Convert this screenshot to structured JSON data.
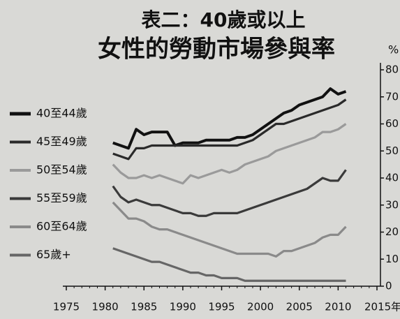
{
  "chart_data": {
    "type": "line",
    "title": "表二：40歲或以上",
    "subtitle": "女性的勞動市場參與率",
    "y_axis_label": "%",
    "x": [
      1981,
      1982,
      1983,
      1984,
      1985,
      1986,
      1987,
      1988,
      1989,
      1990,
      1991,
      1992,
      1993,
      1994,
      1995,
      1996,
      1997,
      1998,
      1999,
      2000,
      2001,
      2002,
      2003,
      2004,
      2005,
      2006,
      2007,
      2008,
      2009,
      2010,
      2011
    ],
    "series": [
      {
        "name": "40至44歲",
        "color": "#111111",
        "values": [
          53,
          52,
          51,
          58,
          56,
          57,
          57,
          57,
          52,
          53,
          53,
          53,
          54,
          54,
          54,
          54,
          55,
          55,
          56,
          58,
          60,
          62,
          64,
          65,
          67,
          68,
          69,
          70,
          73,
          71,
          72
        ]
      },
      {
        "name": "45至49歲",
        "color": "#2a2a2a",
        "values": [
          49,
          48,
          47,
          51,
          51,
          52,
          52,
          52,
          52,
          52,
          52,
          52,
          52,
          52,
          52,
          52,
          52,
          53,
          54,
          56,
          58,
          60,
          60,
          61,
          62,
          63,
          64,
          65,
          66,
          67,
          69
        ]
      },
      {
        "name": "50至54歲",
        "color": "#9a9a9a",
        "values": [
          45,
          42,
          40,
          40,
          41,
          40,
          41,
          40,
          39,
          38,
          41,
          40,
          41,
          42,
          43,
          42,
          43,
          45,
          46,
          47,
          48,
          50,
          51,
          52,
          53,
          54,
          55,
          57,
          57,
          58,
          60
        ]
      },
      {
        "name": "55至59歲",
        "color": "#3a3a3a",
        "values": [
          37,
          33,
          31,
          32,
          31,
          30,
          30,
          29,
          28,
          27,
          27,
          26,
          26,
          27,
          27,
          27,
          27,
          28,
          29,
          30,
          31,
          32,
          33,
          34,
          35,
          36,
          38,
          40,
          39,
          39,
          43
        ]
      },
      {
        "name": "60至64歲",
        "color": "#8a8a8a",
        "values": [
          31,
          28,
          25,
          25,
          24,
          22,
          21,
          21,
          20,
          19,
          18,
          17,
          16,
          15,
          14,
          13,
          12,
          12,
          12,
          12,
          12,
          11,
          13,
          13,
          14,
          15,
          16,
          18,
          19,
          19,
          22
        ]
      },
      {
        "name": "65歲+",
        "color": "#666666",
        "values": [
          14,
          13,
          12,
          11,
          10,
          9,
          9,
          8,
          7,
          6,
          5,
          5,
          4,
          4,
          3,
          3,
          3,
          2,
          2,
          2,
          2,
          2,
          2,
          2,
          2,
          2,
          2,
          2,
          2,
          2,
          2
        ]
      }
    ],
    "xlim": [
      1975,
      2015
    ],
    "xticks": [
      1975,
      1980,
      1985,
      1990,
      1995,
      2000,
      2005,
      2010,
      {
        "value": 2015,
        "label": "2015年"
      }
    ],
    "ylim": [
      0,
      80
    ],
    "yticks": [
      0,
      10,
      20,
      30,
      40,
      50,
      60,
      70,
      80
    ]
  }
}
